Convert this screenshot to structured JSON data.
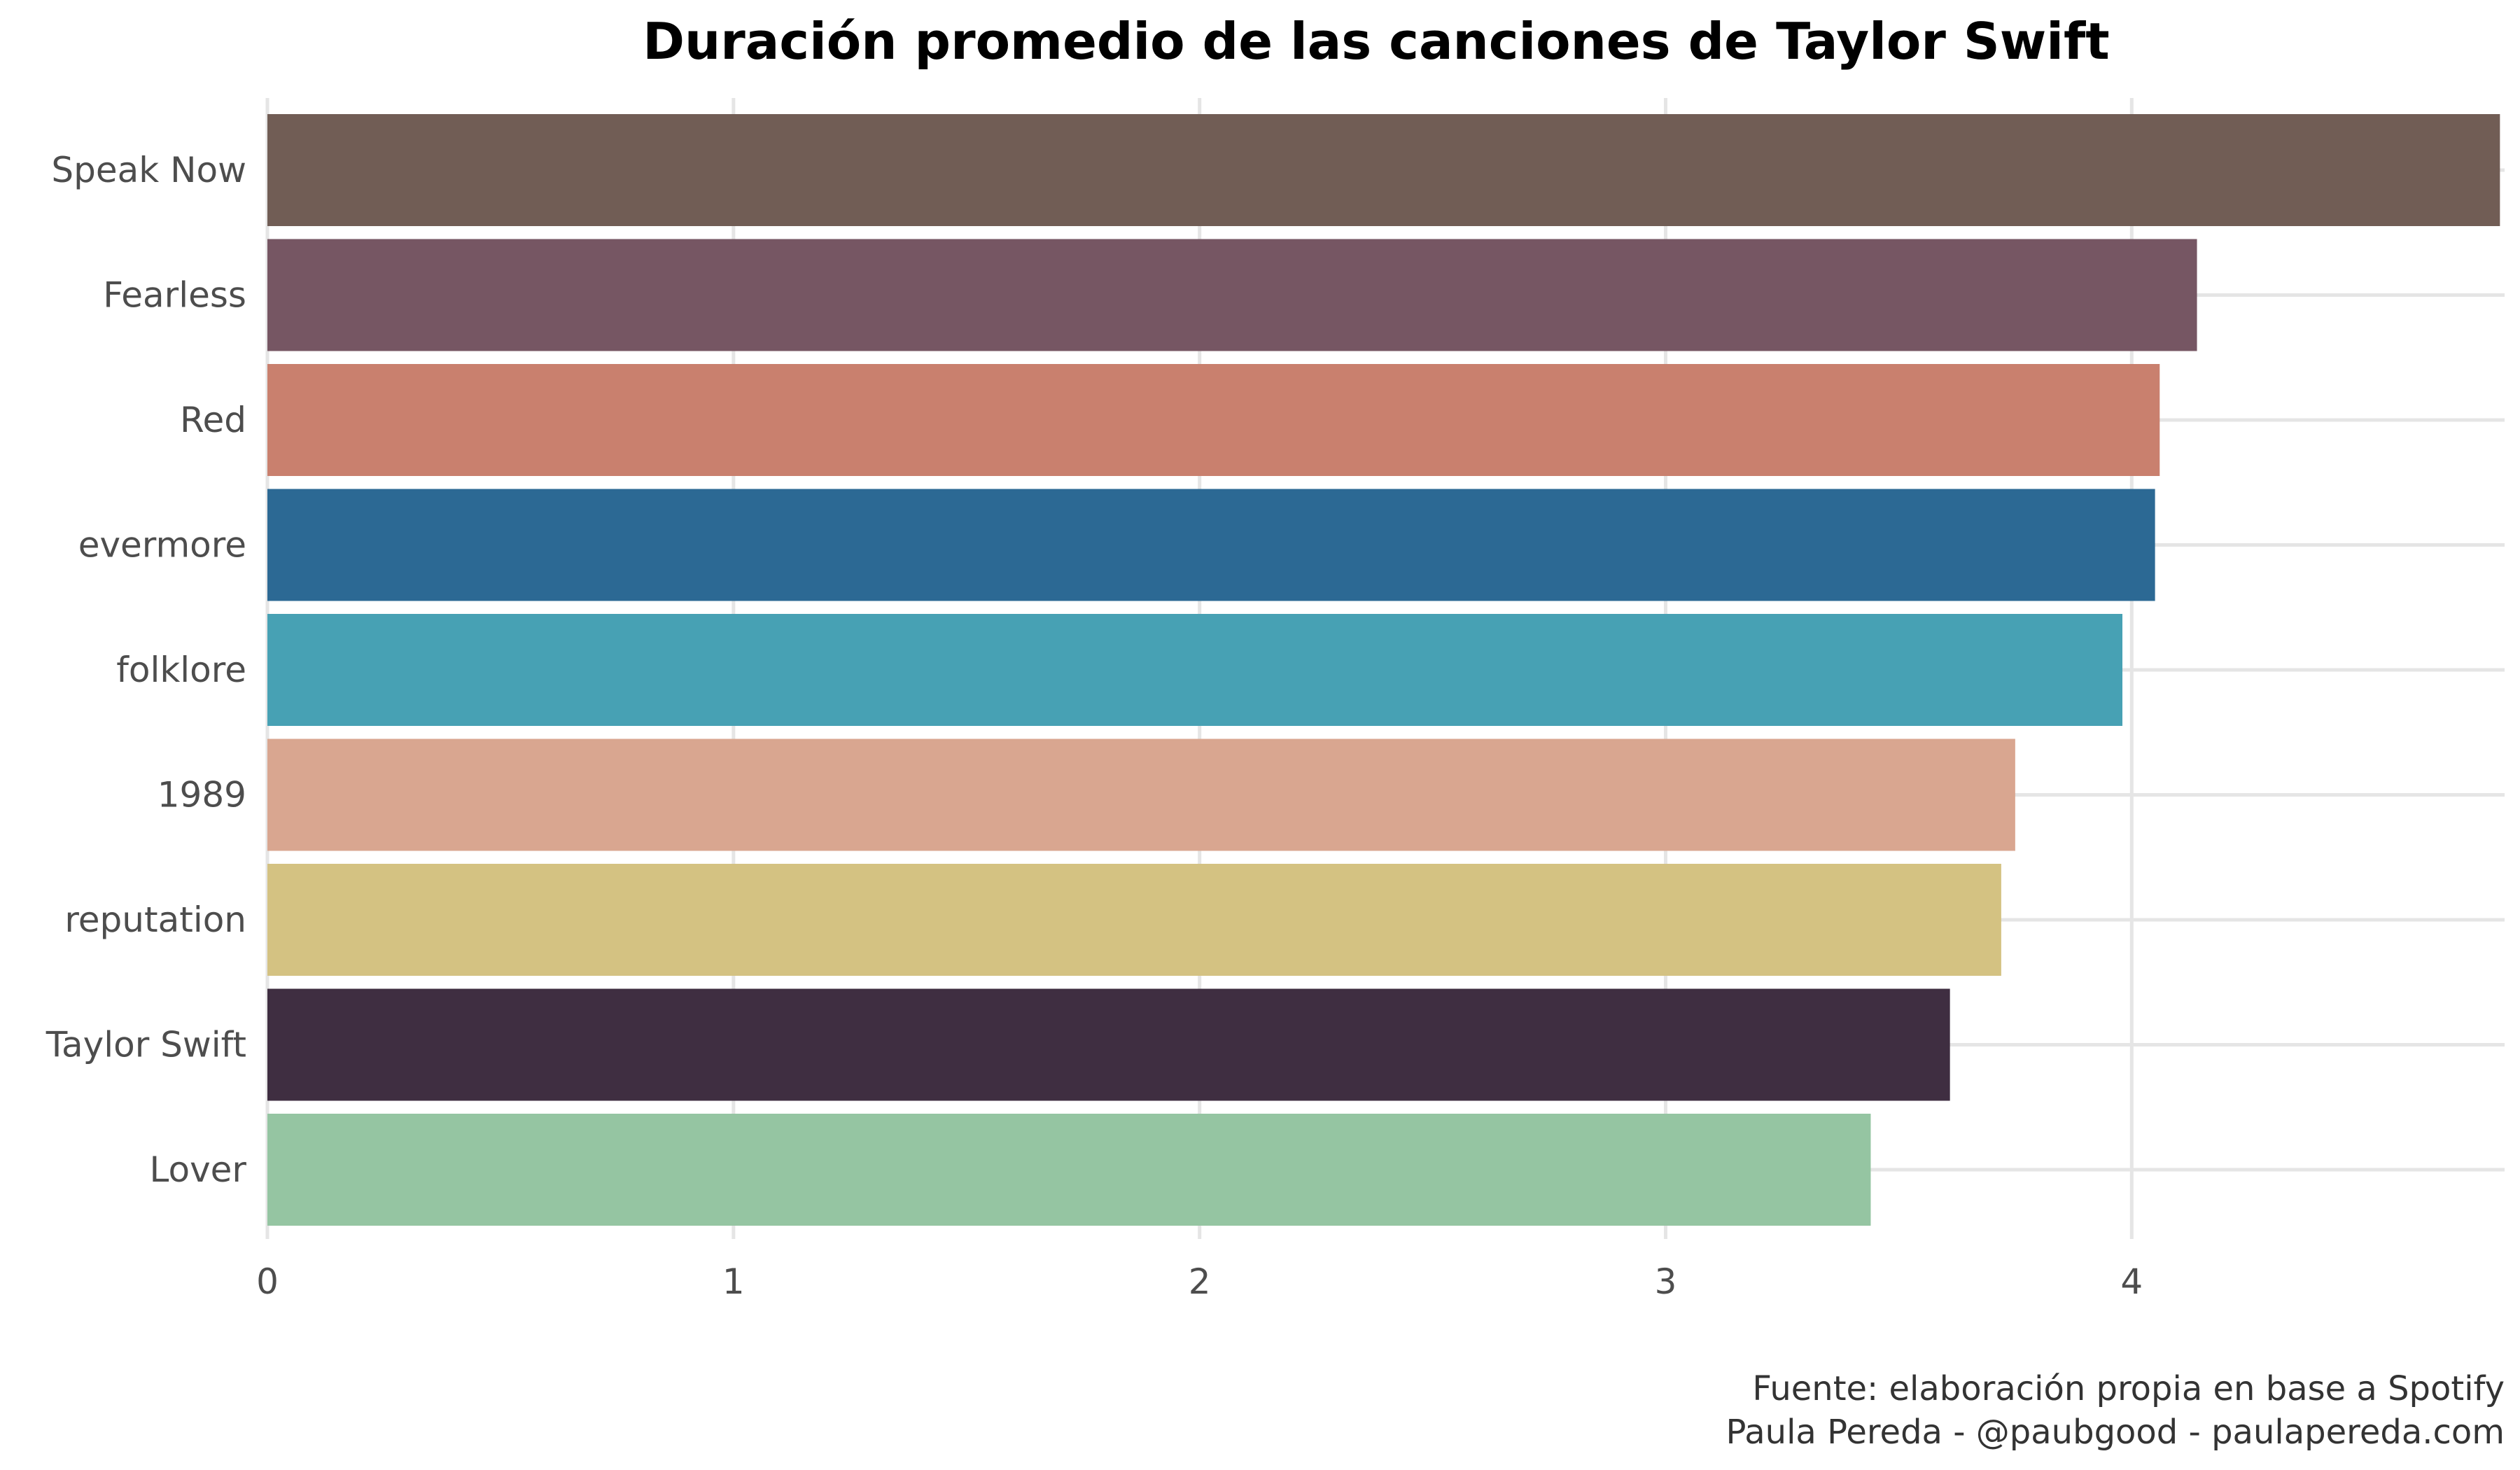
{
  "chart_data": {
    "type": "bar",
    "orientation": "horizontal",
    "title": "Duración promedio de las canciones de Taylor Swift",
    "xlabel": "",
    "ylabel": "",
    "xlim": [
      0,
      4.8
    ],
    "xticks": [
      "0",
      "1",
      "2",
      "3",
      "4"
    ],
    "grid": true,
    "categories": [
      "Speak Now",
      "Fearless",
      "Red",
      "evermore",
      "folklore",
      "1989",
      "reputation",
      "Taylor Swift",
      "Lover"
    ],
    "values": [
      4.79,
      4.14,
      4.06,
      4.05,
      3.98,
      3.75,
      3.72,
      3.61,
      3.44
    ],
    "colors": [
      "#715d55",
      "#765663",
      "#c9806e",
      "#2c6994",
      "#47a1b4",
      "#d9a690",
      "#d4c282",
      "#3f2e41",
      "#95c5a2"
    ],
    "caption": [
      "Fuente: elaboración propia en base a Spotify",
      "Paula Pereda - @paubgood - paulapereda.com"
    ]
  }
}
